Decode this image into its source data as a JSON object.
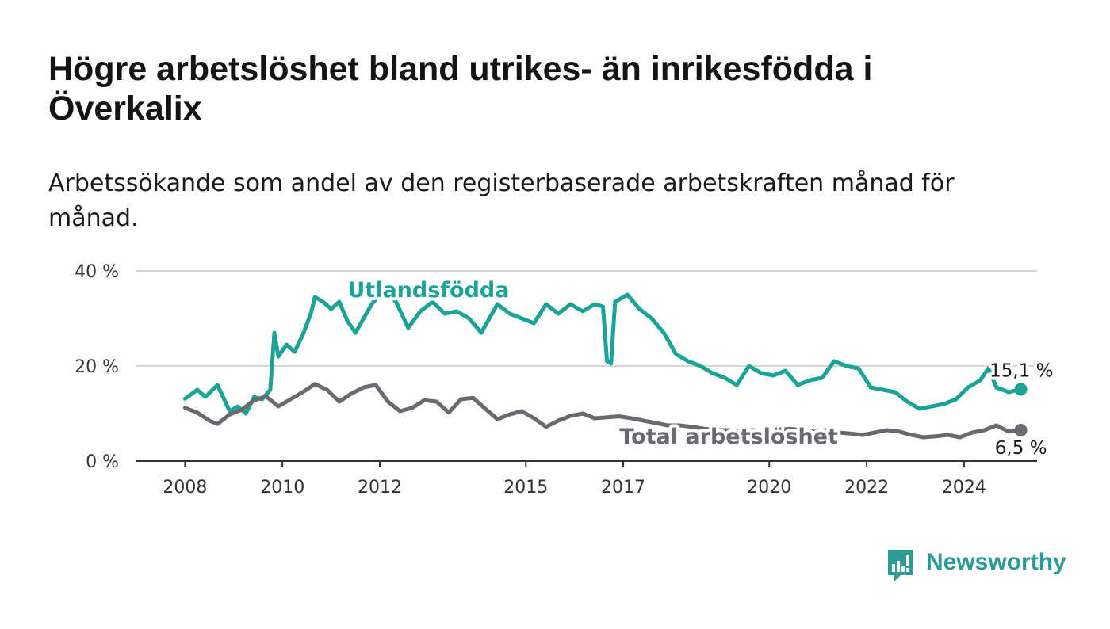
{
  "title": "Högre arbetslöshet bland utrikes- än inrikesfödda i Överkalix",
  "subtitle": "Arbetssökande som andel av den registerbaserade arbetskraften månad för månad.",
  "brand": {
    "name": "Newsworthy",
    "icon": "newsworthy-logo-icon",
    "color": "#2f9a96"
  },
  "chart_data": {
    "type": "line",
    "ylim": [
      0,
      40
    ],
    "yticks": [
      {
        "value": 0,
        "label": "0 %"
      },
      {
        "value": 20,
        "label": "20 %"
      },
      {
        "value": 40,
        "label": "40 %"
      }
    ],
    "xlim": [
      "2007-01",
      "2025-07"
    ],
    "xticks": [
      {
        "value": "2008-01",
        "label": "2008"
      },
      {
        "value": "2010-01",
        "label": "2010"
      },
      {
        "value": "2012-01",
        "label": "2012"
      },
      {
        "value": "2015-01",
        "label": "2015"
      },
      {
        "value": "2017-01",
        "label": "2017"
      },
      {
        "value": "2020-01",
        "label": "2020"
      },
      {
        "value": "2022-01",
        "label": "2022"
      },
      {
        "value": "2024-01",
        "label": "2024"
      }
    ],
    "grid": true,
    "legend": "inline",
    "series": [
      {
        "name": "Utlandsfödda",
        "color": "#1aa396",
        "end_label": "15,1 %",
        "points": [
          [
            "2008-01",
            13.1
          ],
          [
            "2008-04",
            15.0
          ],
          [
            "2008-06",
            13.5
          ],
          [
            "2008-09",
            16.0
          ],
          [
            "2008-12",
            10.5
          ],
          [
            "2009-02",
            11.5
          ],
          [
            "2009-04",
            10.0
          ],
          [
            "2009-06",
            13.5
          ],
          [
            "2009-08",
            13.0
          ],
          [
            "2009-10",
            15.0
          ],
          [
            "2009-11",
            27.0
          ],
          [
            "2009-12",
            22.0
          ],
          [
            "2010-02",
            24.5
          ],
          [
            "2010-04",
            23.0
          ],
          [
            "2010-06",
            26.5
          ],
          [
            "2010-08",
            31.0
          ],
          [
            "2010-09",
            34.5
          ],
          [
            "2010-11",
            33.5
          ],
          [
            "2011-01",
            32.0
          ],
          [
            "2011-03",
            33.5
          ],
          [
            "2011-05",
            29.5
          ],
          [
            "2011-07",
            27.0
          ],
          [
            "2011-09",
            30.0
          ],
          [
            "2011-11",
            33.0
          ],
          [
            "2012-02",
            36.0
          ],
          [
            "2012-05",
            33.5
          ],
          [
            "2012-08",
            28.0
          ],
          [
            "2012-11",
            31.5
          ],
          [
            "2013-02",
            33.5
          ],
          [
            "2013-05",
            31.0
          ],
          [
            "2013-08",
            31.5
          ],
          [
            "2013-11",
            30.0
          ],
          [
            "2014-02",
            27.0
          ],
          [
            "2014-05",
            31.5
          ],
          [
            "2014-06",
            33.0
          ],
          [
            "2014-09",
            31.0
          ],
          [
            "2015-03",
            29.0
          ],
          [
            "2015-06",
            33.0
          ],
          [
            "2015-09",
            31.0
          ],
          [
            "2015-12",
            33.0
          ],
          [
            "2016-03",
            31.5
          ],
          [
            "2016-06",
            33.0
          ],
          [
            "2016-08",
            32.5
          ],
          [
            "2016-09",
            21.0
          ],
          [
            "2016-10",
            20.5
          ],
          [
            "2016-11",
            33.5
          ],
          [
            "2017-02",
            35.0
          ],
          [
            "2017-05",
            32.0
          ],
          [
            "2017-08",
            30.0
          ],
          [
            "2017-11",
            27.0
          ],
          [
            "2018-02",
            22.5
          ],
          [
            "2018-05",
            21.0
          ],
          [
            "2018-08",
            20.0
          ],
          [
            "2018-11",
            18.5
          ],
          [
            "2019-02",
            17.5
          ],
          [
            "2019-05",
            16.0
          ],
          [
            "2019-08",
            20.0
          ],
          [
            "2019-11",
            18.5
          ],
          [
            "2020-02",
            18.0
          ],
          [
            "2020-05",
            19.0
          ],
          [
            "2020-08",
            16.0
          ],
          [
            "2020-11",
            17.0
          ],
          [
            "2021-02",
            17.5
          ],
          [
            "2021-05",
            21.0
          ],
          [
            "2021-08",
            20.0
          ],
          [
            "2021-11",
            19.5
          ],
          [
            "2022-02",
            15.5
          ],
          [
            "2022-05",
            15.0
          ],
          [
            "2022-08",
            14.5
          ],
          [
            "2022-11",
            12.5
          ],
          [
            "2023-02",
            11.0
          ],
          [
            "2023-05",
            11.5
          ],
          [
            "2023-08",
            12.0
          ],
          [
            "2023-11",
            13.0
          ],
          [
            "2024-02",
            15.5
          ],
          [
            "2024-05",
            17.0
          ],
          [
            "2024-07",
            19.5
          ],
          [
            "2024-09",
            15.5
          ],
          [
            "2024-12",
            14.5
          ],
          [
            "2025-03",
            15.1
          ]
        ]
      },
      {
        "name": "Total arbetslöshet",
        "color": "#6b6870",
        "end_label": "6,5 %",
        "points": [
          [
            "2008-01",
            11.2
          ],
          [
            "2008-04",
            10.2
          ],
          [
            "2008-07",
            8.5
          ],
          [
            "2008-09",
            7.8
          ],
          [
            "2008-12",
            9.8
          ],
          [
            "2009-03",
            10.8
          ],
          [
            "2009-06",
            12.8
          ],
          [
            "2009-09",
            13.6
          ],
          [
            "2009-12",
            11.5
          ],
          [
            "2010-03",
            13.0
          ],
          [
            "2010-06",
            14.5
          ],
          [
            "2010-09",
            16.2
          ],
          [
            "2010-12",
            15.0
          ],
          [
            "2011-03",
            12.5
          ],
          [
            "2011-06",
            14.2
          ],
          [
            "2011-09",
            15.5
          ],
          [
            "2011-12",
            16.0
          ],
          [
            "2012-03",
            12.5
          ],
          [
            "2012-06",
            10.5
          ],
          [
            "2012-09",
            11.2
          ],
          [
            "2012-12",
            12.8
          ],
          [
            "2013-03",
            12.5
          ],
          [
            "2013-06",
            10.2
          ],
          [
            "2013-09",
            13.0
          ],
          [
            "2013-12",
            13.3
          ],
          [
            "2014-03",
            11.0
          ],
          [
            "2014-06",
            8.8
          ],
          [
            "2014-09",
            9.8
          ],
          [
            "2014-12",
            10.5
          ],
          [
            "2015-03",
            9.0
          ],
          [
            "2015-06",
            7.2
          ],
          [
            "2015-09",
            8.5
          ],
          [
            "2015-12",
            9.5
          ],
          [
            "2016-03",
            10.0
          ],
          [
            "2016-06",
            9.0
          ],
          [
            "2016-09",
            9.2
          ],
          [
            "2016-12",
            9.4
          ],
          [
            "2017-03",
            9.0
          ],
          [
            "2017-06",
            8.5
          ],
          [
            "2017-09",
            8.0
          ],
          [
            "2017-12",
            7.5
          ],
          [
            "2018-03",
            7.5
          ],
          [
            "2018-06",
            7.2
          ],
          [
            "2018-09",
            6.8
          ],
          [
            "2018-12",
            6.5
          ],
          [
            "2019-03",
            6.5
          ],
          [
            "2019-06",
            6.2
          ],
          [
            "2019-09",
            6.5
          ],
          [
            "2019-12",
            6.0
          ],
          [
            "2020-03",
            6.5
          ],
          [
            "2020-06",
            6.8
          ],
          [
            "2020-09",
            6.5
          ],
          [
            "2020-12",
            6.2
          ],
          [
            "2021-03",
            6.5
          ],
          [
            "2021-06",
            6.0
          ],
          [
            "2021-09",
            5.8
          ],
          [
            "2021-12",
            5.5
          ],
          [
            "2022-03",
            6.0
          ],
          [
            "2022-06",
            6.5
          ],
          [
            "2022-09",
            6.2
          ],
          [
            "2022-12",
            5.5
          ],
          [
            "2023-03",
            5.0
          ],
          [
            "2023-06",
            5.2
          ],
          [
            "2023-09",
            5.5
          ],
          [
            "2023-12",
            5.0
          ],
          [
            "2024-03",
            6.0
          ],
          [
            "2024-06",
            6.5
          ],
          [
            "2024-09",
            7.5
          ],
          [
            "2024-12",
            6.2
          ],
          [
            "2025-03",
            6.5
          ]
        ]
      }
    ]
  }
}
